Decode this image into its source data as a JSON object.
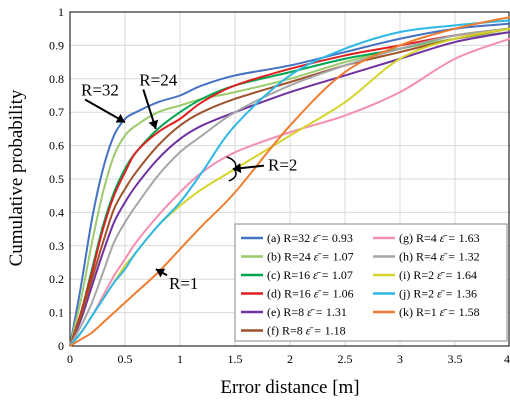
{
  "chart_data": {
    "type": "line",
    "xlabel": "Error distance [m]",
    "ylabel": "Cumulative probability",
    "xlim": [
      0,
      4
    ],
    "ylim": [
      0,
      1
    ],
    "xticks": [
      "0",
      "0.5",
      "1",
      "1.5",
      "2",
      "2.5",
      "3",
      "3.5",
      "4"
    ],
    "yticks": [
      "0",
      "0.1",
      "0.2",
      "0.3",
      "0.4",
      "0.5",
      "0.6",
      "0.7",
      "0.8",
      "0.9",
      "1"
    ],
    "grid": true,
    "legend_position": "bottom-right",
    "x": [
      0,
      0.1,
      0.2,
      0.3,
      0.4,
      0.5,
      0.6,
      0.8,
      1.0,
      1.2,
      1.5,
      2.0,
      2.5,
      3.0,
      3.5,
      4.0
    ],
    "series": [
      {
        "name": "(a) R=32",
        "eps": "0.93",
        "color": "#4472C4",
        "values": [
          0,
          0.18,
          0.38,
          0.53,
          0.63,
          0.68,
          0.7,
          0.73,
          0.75,
          0.78,
          0.81,
          0.84,
          0.88,
          0.92,
          0.95,
          0.965
        ]
      },
      {
        "name": "(b) R=24",
        "eps": "1.07",
        "color": "#9BCB6B",
        "values": [
          0,
          0.14,
          0.31,
          0.46,
          0.57,
          0.63,
          0.66,
          0.7,
          0.72,
          0.74,
          0.76,
          0.8,
          0.85,
          0.89,
          0.92,
          0.94
        ]
      },
      {
        "name": "(c) R=16",
        "eps": "1.07",
        "color": "#00A651",
        "values": [
          0,
          0.1,
          0.23,
          0.36,
          0.46,
          0.53,
          0.58,
          0.65,
          0.7,
          0.74,
          0.78,
          0.82,
          0.86,
          0.89,
          0.93,
          0.95
        ]
      },
      {
        "name": "(d) R=16",
        "eps": "1.06",
        "color": "#E02020",
        "values": [
          0,
          0.1,
          0.22,
          0.35,
          0.45,
          0.52,
          0.58,
          0.64,
          0.68,
          0.73,
          0.78,
          0.83,
          0.87,
          0.9,
          0.93,
          0.95
        ]
      },
      {
        "name": "(e) R=8",
        "eps": "1.31",
        "color": "#7030A0",
        "values": [
          0,
          0.08,
          0.18,
          0.28,
          0.37,
          0.43,
          0.48,
          0.56,
          0.62,
          0.66,
          0.7,
          0.76,
          0.81,
          0.86,
          0.91,
          0.94
        ]
      },
      {
        "name": "(f) R=8",
        "eps": "1.18",
        "color": "#A0522D",
        "values": [
          0,
          0.09,
          0.2,
          0.31,
          0.41,
          0.47,
          0.52,
          0.6,
          0.66,
          0.7,
          0.74,
          0.79,
          0.84,
          0.88,
          0.92,
          0.95
        ]
      },
      {
        "name": "(g) R=4",
        "eps": "1.63",
        "color": "#F48FB1",
        "values": [
          0,
          0.04,
          0.09,
          0.15,
          0.21,
          0.26,
          0.31,
          0.39,
          0.46,
          0.52,
          0.58,
          0.64,
          0.69,
          0.76,
          0.86,
          0.92
        ]
      },
      {
        "name": "(h) R=4",
        "eps": "1.32",
        "color": "#A6A6A6",
        "values": [
          0,
          0.06,
          0.13,
          0.22,
          0.31,
          0.37,
          0.42,
          0.51,
          0.58,
          0.63,
          0.7,
          0.78,
          0.84,
          0.89,
          0.93,
          0.95
        ]
      },
      {
        "name": "(i) R=2",
        "eps": "1.64",
        "color": "#D4D42A",
        "values": [
          0,
          0.04,
          0.09,
          0.14,
          0.19,
          0.24,
          0.28,
          0.36,
          0.42,
          0.47,
          0.53,
          0.63,
          0.73,
          0.86,
          0.92,
          0.95
        ]
      },
      {
        "name": "(j) R=2",
        "eps": "1.36",
        "color": "#2EB8E6",
        "values": [
          0,
          0.04,
          0.09,
          0.14,
          0.19,
          0.23,
          0.28,
          0.36,
          0.43,
          0.52,
          0.66,
          0.81,
          0.89,
          0.94,
          0.96,
          0.975
        ]
      },
      {
        "name": "(k) R=1",
        "eps": "1.58",
        "color": "#ED7D31",
        "values": [
          0,
          0.02,
          0.04,
          0.07,
          0.1,
          0.13,
          0.16,
          0.22,
          0.29,
          0.36,
          0.46,
          0.66,
          0.82,
          0.9,
          0.95,
          0.985
        ]
      }
    ],
    "legend_eps_symbol": "ε̄ =",
    "annotations": [
      {
        "text": "R=32",
        "target": [
          0.5,
          0.67
        ],
        "label": [
          0.1,
          0.75
        ],
        "curly": false
      },
      {
        "text": "R=24",
        "target": [
          0.78,
          0.65
        ],
        "label": [
          0.63,
          0.78
        ],
        "curly": false
      },
      {
        "text": "R=2",
        "target": [
          1.48,
          0.53
        ],
        "label": [
          1.8,
          0.525
        ],
        "curly": true
      },
      {
        "text": "R=1",
        "target": [
          0.78,
          0.23
        ],
        "label": [
          0.9,
          0.17
        ],
        "curly": false
      }
    ]
  }
}
